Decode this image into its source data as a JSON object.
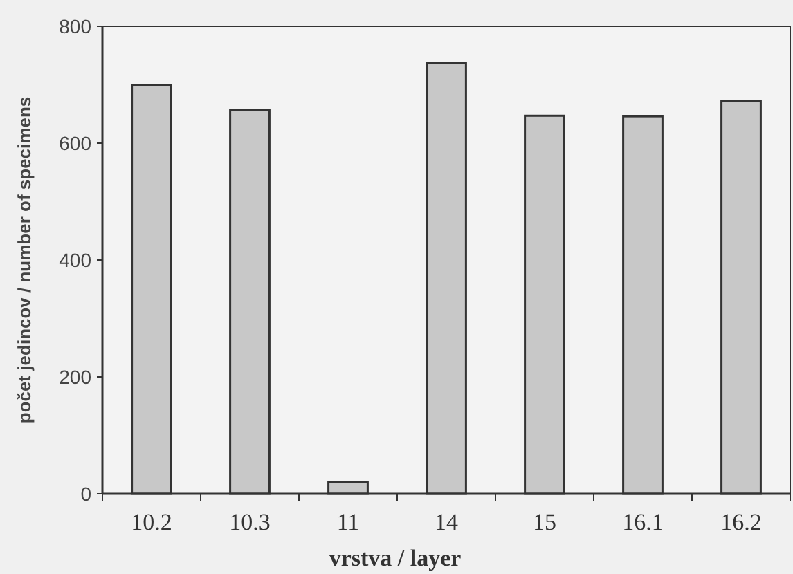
{
  "chart_data": {
    "type": "bar",
    "xlabel": "vrstva / layer",
    "ylabel": "počet jedincov / number of specimens",
    "categories": [
      "10.2",
      "10.3",
      "11",
      "14",
      "15",
      "16.1",
      "16.2"
    ],
    "values": [
      700,
      657,
      20,
      737,
      647,
      646,
      672
    ],
    "color": "#c8c8c8",
    "ylim": [
      0,
      800
    ],
    "yticks": [
      0,
      200,
      400,
      600,
      800
    ]
  }
}
